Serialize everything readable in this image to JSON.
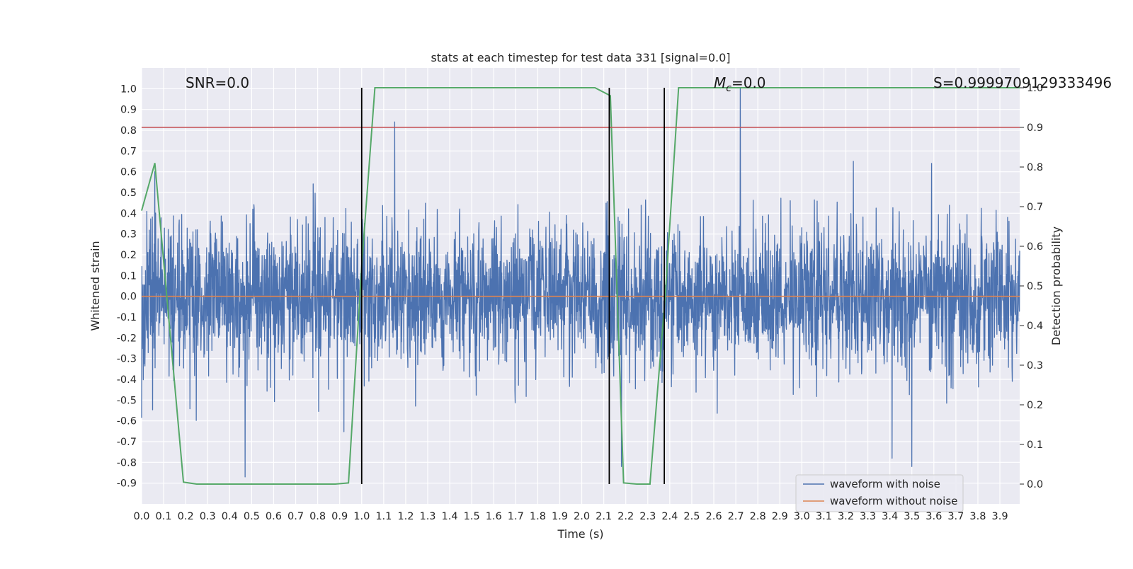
{
  "chart_data": {
    "type": "line",
    "title": "stats at each timestep for test data 331 [signal=0.0]",
    "xlabel": "Time (s)",
    "ylabel": "Whitened strain",
    "y2label": "Detection probability",
    "xlim": [
      0.0,
      3.99
    ],
    "ylim": [
      -1.0,
      1.1
    ],
    "y2lim": [
      -0.05,
      1.05
    ],
    "xticks": [
      "0.0",
      "0.1",
      "0.2",
      "0.3",
      "0.4",
      "0.5",
      "0.6",
      "0.7",
      "0.8",
      "0.9",
      "1.0",
      "1.1",
      "1.2",
      "1.3",
      "1.4",
      "1.5",
      "1.6",
      "1.7",
      "1.8",
      "1.9",
      "2.0",
      "2.1",
      "2.2",
      "2.3",
      "2.4",
      "2.5",
      "2.6",
      "2.7",
      "2.8",
      "2.9",
      "3.0",
      "3.1",
      "3.2",
      "3.3",
      "3.4",
      "3.5",
      "3.6",
      "3.7",
      "3.8",
      "3.9"
    ],
    "yticks": [
      "-0.9",
      "-0.8",
      "-0.7",
      "-0.6",
      "-0.5",
      "-0.4",
      "-0.3",
      "-0.2",
      "-0.1",
      "0.0",
      "0.1",
      "0.2",
      "0.3",
      "0.4",
      "0.5",
      "0.6",
      "0.7",
      "0.8",
      "0.9",
      "1.0"
    ],
    "y2ticks": [
      "0.0",
      "0.1",
      "0.2",
      "0.3",
      "0.4",
      "0.5",
      "0.6",
      "0.7",
      "0.8",
      "0.9",
      "1.0"
    ],
    "grid": true,
    "legend_position": "lower-right",
    "annotations": {
      "snr": "SNR=0.0",
      "mc_symbol": "M",
      "mc_sub": "c",
      "mc_value": "=0.0",
      "s": "S=0.9999709129333496"
    },
    "series": [
      {
        "name": "waveform with noise",
        "color": "#4c72b0",
        "kind": "noise",
        "approx_amplitude": 0.35,
        "peaks": [
          [
            0.06,
            0.6
          ],
          [
            0.47,
            -0.87
          ],
          [
            1.15,
            0.84
          ],
          [
            2.18,
            -0.82
          ],
          [
            2.72,
            1.0
          ],
          [
            3.41,
            -0.78
          ],
          [
            3.5,
            -0.82
          ],
          [
            3.59,
            0.64
          ]
        ]
      },
      {
        "name": "waveform without noise",
        "color": "#dd8452",
        "x": [
          0.0,
          3.99
        ],
        "y": [
          0.0,
          0.0
        ]
      },
      {
        "color": "#55a868",
        "axis": "y2",
        "x": [
          0.0,
          0.06,
          0.19,
          0.25,
          0.88,
          0.94,
          1.0,
          1.06,
          2.06,
          2.13,
          2.19,
          2.25,
          2.31,
          2.38,
          2.44,
          3.99
        ],
        "y": [
          0.69,
          0.81,
          0.005,
          0.0,
          0.0,
          0.003,
          0.55,
          1.0,
          1.0,
          0.98,
          0.003,
          0.0,
          0.0,
          0.48,
          1.0,
          1.0
        ]
      },
      {
        "color": "#c44e52",
        "axis": "y2",
        "x": [
          0.0,
          3.99
        ],
        "y": [
          0.9,
          0.9
        ]
      }
    ],
    "vlines": [
      {
        "x": 1.0,
        "color": "#000000"
      },
      {
        "x": 2.125,
        "color": "#000000"
      },
      {
        "x": 2.375,
        "color": "#000000"
      }
    ]
  }
}
